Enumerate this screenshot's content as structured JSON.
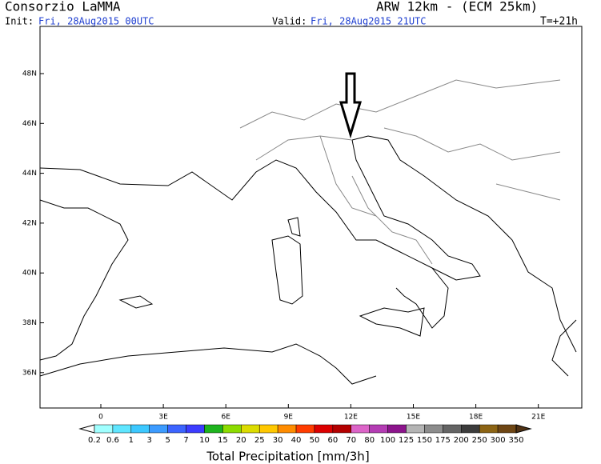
{
  "header": {
    "title": "Consorzio LaMMA",
    "model": "ARW 12km - (ECM 25km)",
    "init_label": "Init:",
    "init_time": "Fri, 28Aug2015 00UTC",
    "valid_label": "Valid:",
    "valid_time": "Fri, 28Aug2015 21UTC",
    "lead": "T=+21h"
  },
  "map": {
    "lat_labels": [
      "48N",
      "46N",
      "44N",
      "42N",
      "40N",
      "38N",
      "36N"
    ],
    "lon_labels": [
      "0",
      "3E",
      "6E",
      "9E",
      "12E",
      "15E",
      "18E",
      "21E"
    ]
  },
  "colorbar": {
    "title": "Total Precipitation [mm/3h]",
    "labels": [
      0.2,
      0.6,
      1,
      3,
      5,
      7,
      10,
      15,
      20,
      25,
      30,
      40,
      50,
      60,
      70,
      80,
      100,
      125,
      150,
      175,
      200,
      250,
      300,
      350
    ],
    "colors": [
      "#ffffff",
      "#a0ffff",
      "#5fe6ff",
      "#3cc8ff",
      "#3c9bff",
      "#3c64ff",
      "#3c3cff",
      "#1eb41e",
      "#8cdc00",
      "#dcdc00",
      "#ffc800",
      "#ff8c00",
      "#ff3c00",
      "#dc0000",
      "#b40000",
      "#dc64c8",
      "#b43cb4",
      "#8c148c",
      "#b4b4b4",
      "#8c8c8c",
      "#646464",
      "#3c3c3c",
      "#8c6414",
      "#6e4614",
      "#503214"
    ]
  }
}
